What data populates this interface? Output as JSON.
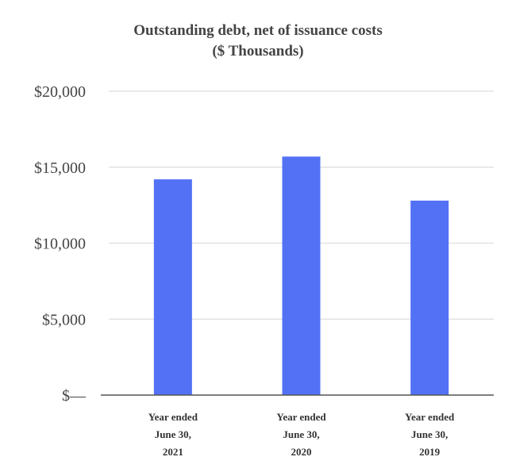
{
  "chart_data": {
    "type": "bar",
    "title": "Outstanding debt, net of issuance costs",
    "subtitle": "($ Thousands)",
    "xlabel": "",
    "ylabel": "",
    "categories": [
      [
        "Year ended",
        "June 30,",
        "2021"
      ],
      [
        "Year ended",
        "June 30,",
        "2020"
      ],
      [
        "Year ended",
        "June 30,",
        "2019"
      ]
    ],
    "values": [
      14200,
      15700,
      12800
    ],
    "ylim": [
      0,
      20000
    ],
    "yticks": [
      0,
      5000,
      10000,
      15000,
      20000
    ],
    "ytick_labels": [
      "$—",
      "$5,000",
      "$10,000",
      "$15,000",
      "$20,000"
    ],
    "grid": true,
    "legend": "none",
    "colors": {
      "bar": "#5271f5",
      "grid": "#dddddd",
      "axis": "#555555"
    }
  }
}
